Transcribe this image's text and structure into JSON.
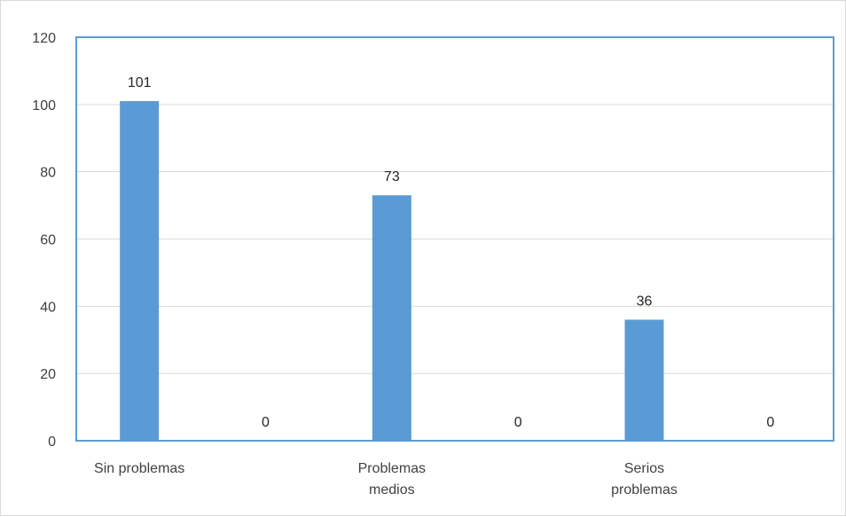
{
  "chart_data": {
    "type": "bar",
    "categories": [
      "Sin problemas",
      "",
      "Problemas medios",
      "",
      "Serios problemas",
      ""
    ],
    "category_lines": [
      [
        "Sin problemas"
      ],
      [],
      [
        "Problemas",
        "medios"
      ],
      [],
      [
        "Serios",
        "problemas"
      ],
      []
    ],
    "values": [
      101,
      0,
      73,
      0,
      36,
      0
    ],
    "data_labels": [
      "101",
      "0",
      "73",
      "0",
      "36",
      "0"
    ],
    "title": "",
    "xlabel": "",
    "ylabel": "",
    "ylim": [
      0,
      120
    ],
    "y_ticks": [
      0,
      20,
      40,
      60,
      80,
      100,
      120
    ],
    "grid": true,
    "bar_color": "#5b9bd5",
    "plot_border_color": "#5b9bd5",
    "grid_color": "#d9d9d9"
  }
}
